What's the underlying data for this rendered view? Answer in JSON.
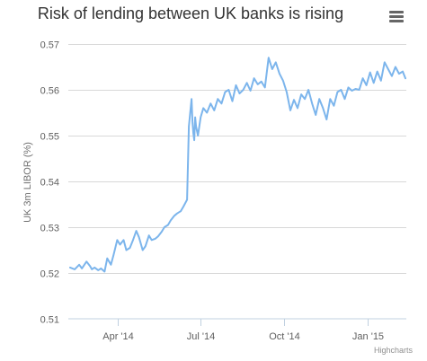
{
  "chart_data": {
    "type": "line",
    "title": "Risk of lending between UK banks is rising",
    "ylabel": "UK 3m LIBOR (%)",
    "xlabel": "",
    "ylim": [
      0.51,
      0.57
    ],
    "yticks": [
      0.51,
      0.52,
      0.53,
      0.54,
      0.55,
      0.56,
      0.57
    ],
    "ytick_labels": [
      "0.51",
      "0.52",
      "0.53",
      "0.54",
      "0.55",
      "0.56",
      "0.57"
    ],
    "xlim": [
      "2014-02-05",
      "2015-02-13"
    ],
    "xticks": [
      "2014-04-01",
      "2014-07-01",
      "2014-10-01",
      "2015-01-01"
    ],
    "xtick_labels": [
      "Apr '14",
      "Jul '14",
      "Oct '14",
      "Jan '15"
    ],
    "grid": true,
    "legend": "none",
    "credits": "Highcharts",
    "series": [
      {
        "color": "#7cb5ec",
        "x": [
          "2014-02-07",
          "2014-02-12",
          "2014-02-17",
          "2014-02-20",
          "2014-02-25",
          "2014-03-01",
          "2014-03-03",
          "2014-03-06",
          "2014-03-10",
          "2014-03-13",
          "2014-03-17",
          "2014-03-20",
          "2014-03-24",
          "2014-03-27",
          "2014-03-31",
          "2014-04-03",
          "2014-04-07",
          "2014-04-10",
          "2014-04-14",
          "2014-04-17",
          "2014-04-21",
          "2014-04-24",
          "2014-04-28",
          "2014-05-01",
          "2014-05-05",
          "2014-05-08",
          "2014-05-12",
          "2014-05-15",
          "2014-05-19",
          "2014-05-22",
          "2014-05-26",
          "2014-05-29",
          "2014-06-02",
          "2014-06-05",
          "2014-06-09",
          "2014-06-12",
          "2014-06-16",
          "2014-06-18",
          "2014-06-20",
          "2014-06-21",
          "2014-06-22",
          "2014-06-23",
          "2014-06-24",
          "2014-06-25",
          "2014-06-26",
          "2014-06-28",
          "2014-07-01",
          "2014-07-04",
          "2014-07-08",
          "2014-07-12",
          "2014-07-16",
          "2014-07-20",
          "2014-07-24",
          "2014-07-28",
          "2014-08-01",
          "2014-08-05",
          "2014-08-09",
          "2014-08-13",
          "2014-08-17",
          "2014-08-21",
          "2014-08-25",
          "2014-08-29",
          "2014-09-02",
          "2014-09-06",
          "2014-09-10",
          "2014-09-14",
          "2014-09-18",
          "2014-09-22",
          "2014-09-26",
          "2014-09-30",
          "2014-10-04",
          "2014-10-08",
          "2014-10-12",
          "2014-10-16",
          "2014-10-20",
          "2014-10-24",
          "2014-10-28",
          "2014-11-01",
          "2014-11-05",
          "2014-11-09",
          "2014-11-13",
          "2014-11-17",
          "2014-11-21",
          "2014-11-25",
          "2014-11-29",
          "2014-12-03",
          "2014-12-07",
          "2014-12-11",
          "2014-12-15",
          "2014-12-19",
          "2014-12-23",
          "2014-12-27",
          "2014-12-31",
          "2015-01-04",
          "2015-01-08",
          "2015-01-12",
          "2015-01-16",
          "2015-01-20",
          "2015-01-24",
          "2015-01-28",
          "2015-02-01",
          "2015-02-05",
          "2015-02-09",
          "2015-02-12"
        ],
        "values": [
          0.5212,
          0.5208,
          0.5218,
          0.521,
          0.5225,
          0.5215,
          0.5208,
          0.5212,
          0.5206,
          0.521,
          0.5203,
          0.5232,
          0.5218,
          0.524,
          0.5272,
          0.5262,
          0.5272,
          0.525,
          0.5255,
          0.527,
          0.5292,
          0.5278,
          0.525,
          0.5258,
          0.5282,
          0.5272,
          0.5275,
          0.528,
          0.529,
          0.53,
          0.5305,
          0.5315,
          0.5325,
          0.533,
          0.5335,
          0.5345,
          0.536,
          0.552,
          0.556,
          0.558,
          0.553,
          0.5505,
          0.549,
          0.554,
          0.552,
          0.55,
          0.554,
          0.556,
          0.555,
          0.557,
          0.5555,
          0.558,
          0.557,
          0.5595,
          0.56,
          0.5575,
          0.561,
          0.5592,
          0.56,
          0.5615,
          0.5598,
          0.5625,
          0.5612,
          0.5618,
          0.5605,
          0.567,
          0.5645,
          0.566,
          0.5635,
          0.562,
          0.5595,
          0.5555,
          0.5578,
          0.556,
          0.559,
          0.558,
          0.56,
          0.557,
          0.5545,
          0.558,
          0.556,
          0.5535,
          0.558,
          0.5565,
          0.5595,
          0.56,
          0.558,
          0.5605,
          0.5598,
          0.5602,
          0.56,
          0.5625,
          0.561,
          0.5638,
          0.5615,
          0.564,
          0.562,
          0.566,
          0.5645,
          0.563,
          0.565,
          0.5635,
          0.564,
          0.5625
        ]
      }
    ]
  }
}
